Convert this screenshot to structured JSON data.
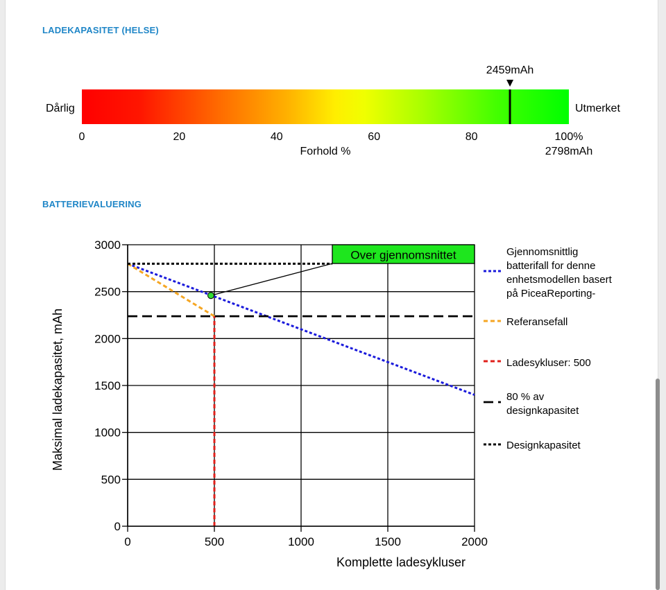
{
  "sections": {
    "health_title": "LADEKAPASITET (HELSE)",
    "evaluation_title": "BATTERIEVALUERING"
  },
  "gauge": {
    "label_left": "Dårlig",
    "label_right": "Utmerket",
    "marker_value": "2459mAh",
    "marker_percent": 87.9,
    "ticks": [
      "0",
      "20",
      "40",
      "60",
      "80",
      "100%"
    ],
    "axis_label": "Forhold %",
    "max_label": "2798mAh"
  },
  "chart_data": {
    "type": "line",
    "xlabel": "Komplette ladesykluser",
    "ylabel": "Maksimal ladekapasitet, mAh",
    "xlim": [
      0,
      2000
    ],
    "ylim": [
      0,
      3000
    ],
    "xticks": [
      "0",
      "500",
      "1000",
      "1500",
      "2000"
    ],
    "yticks": [
      "0",
      "500",
      "1000",
      "1500",
      "2000",
      "2500",
      "3000"
    ],
    "grid": true,
    "annotation": {
      "text": "Over gjennomsnittet",
      "point": {
        "x": 480,
        "y": 2459
      },
      "box_x_range": [
        1180,
        2000
      ],
      "box_y_range": [
        2800,
        3000
      ]
    },
    "series": [
      {
        "name": "Gjennomsnittlig batterifall for denne enhetsmodellen basert på PiceaReporting-",
        "style": "dotted",
        "color": "#1a1adb",
        "x": [
          0,
          2000
        ],
        "y": [
          2798,
          1400
        ]
      },
      {
        "name": "Referansefall",
        "style": "dashed",
        "color": "#f5a623",
        "x": [
          0,
          500
        ],
        "y": [
          2798,
          2238
        ]
      },
      {
        "name": "Ladesykluser: 500",
        "style": "dashed",
        "color": "#e0201b",
        "x": [
          500,
          500
        ],
        "y": [
          0,
          2238
        ]
      },
      {
        "name": "80 % av designkapasitet",
        "style": "longdash",
        "color": "#000000",
        "x": [
          0,
          2000
        ],
        "y": [
          2238,
          2238
        ]
      },
      {
        "name": "Designkapasitet",
        "style": "dotted",
        "color": "#000000",
        "x": [
          0,
          1180
        ],
        "y": [
          2798,
          2798
        ]
      }
    ],
    "legend": [
      {
        "line1": "Gjennomsnittlig",
        "line2": "batterifall for denne",
        "line3": "enhetsmodellen basert",
        "line4": "på PiceaReporting-"
      },
      {
        "line1": "Referansefall"
      },
      {
        "line1": "Ladesykluser: 500"
      },
      {
        "line1": "80 % av",
        "line2": "designkapasitet"
      },
      {
        "line1": "Designkapasitet"
      }
    ],
    "legend_position": "right"
  },
  "colors": {
    "section_title": "#1f86c7",
    "annotation_box": "#1ee61e",
    "point": "#33dd33"
  }
}
